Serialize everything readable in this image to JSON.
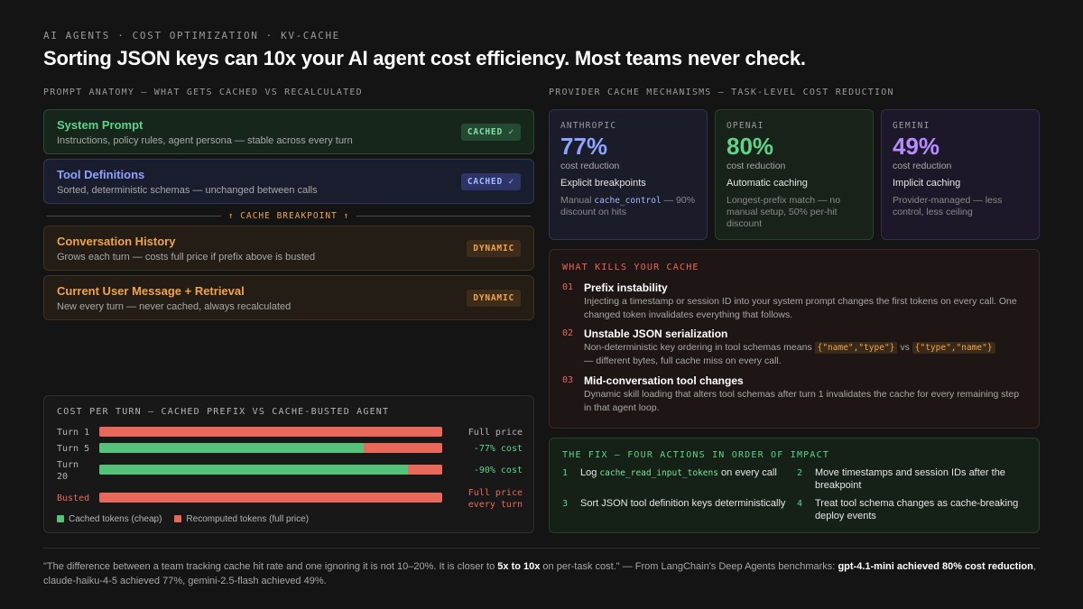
{
  "header": {
    "eyebrow": "AI AGENTS · COST OPTIMIZATION · KV-CACHE",
    "headline": "Sorting JSON keys can 10x your AI agent cost efficiency. Most teams never check."
  },
  "anatomy": {
    "label": "PROMPT ANATOMY — WHAT GETS CACHED VS RECALCULATED",
    "cards": [
      {
        "title": "System Prompt",
        "desc": "Instructions, policy rules, agent persona — stable across every turn",
        "badge": "CACHED ✓"
      },
      {
        "title": "Tool Definitions",
        "desc": "Sorted, deterministic schemas — unchanged between calls",
        "badge": "CACHED ✓"
      },
      {
        "title": "Conversation History",
        "desc": "Grows each turn — costs full price if prefix above is busted",
        "badge": "DYNAMIC"
      },
      {
        "title": "Current User Message + Retrieval",
        "desc": "New every turn — never cached, always recalculated",
        "badge": "DYNAMIC"
      }
    ],
    "breakpoint": "↑ CACHE BREAKPOINT ↑"
  },
  "cost": {
    "title": "COST PER TURN — CACHED PREFIX VS CACHE-BUSTED AGENT",
    "legend": {
      "cached": "Cached tokens (cheap)",
      "recomputed": "Recomputed tokens (full price)"
    },
    "colors": {
      "cached": "#55c27c",
      "recomputed": "#e8685a"
    }
  },
  "chart_data": {
    "type": "bar",
    "title": "COST PER TURN — CACHED PREFIX VS CACHE-BUSTED AGENT",
    "categories": [
      "Turn 1",
      "Turn 5",
      "Turn 20",
      "Busted"
    ],
    "series": [
      {
        "name": "Cached tokens (cheap)",
        "values": [
          0,
          77,
          90,
          0
        ]
      },
      {
        "name": "Recomputed tokens (full price)",
        "values": [
          100,
          23,
          10,
          100
        ]
      }
    ],
    "value_labels": [
      "Full price",
      "-77% cost",
      "-90% cost",
      "Full price every turn"
    ],
    "stacked": true,
    "orientation": "horizontal"
  },
  "providers": {
    "label": "PROVIDER CACHE MECHANISMS — TASK-LEVEL COST REDUCTION",
    "items": [
      {
        "name": "ANTHROPIC",
        "pct": "77%",
        "cr": "cost reduction",
        "mech": "Explicit breakpoints",
        "desc_pre": "Manual ",
        "desc_code": "cache_control",
        "desc_post": " — 90% discount on hits"
      },
      {
        "name": "OPENAI",
        "pct": "80%",
        "cr": "cost reduction",
        "mech": "Automatic caching",
        "desc": "Longest-prefix match — no manual setup, 50% per-hit discount"
      },
      {
        "name": "GEMINI",
        "pct": "49%",
        "cr": "cost reduction",
        "mech": "Implicit caching",
        "desc": "Provider-managed — less control, less ceiling"
      }
    ]
  },
  "kills": {
    "title": "WHAT KILLS YOUR CACHE",
    "items": [
      {
        "num": "01",
        "title": "Prefix instability",
        "desc": "Injecting a timestamp or session ID into your system prompt changes the first tokens on every call. One changed token invalidates everything that follows."
      },
      {
        "num": "02",
        "title": "Unstable JSON serialization",
        "desc_pre": "Non-deterministic key ordering in tool schemas means ",
        "code1": "{\"name\",\"type\"}",
        "vs": " vs ",
        "code2": "{\"type\",\"name\"}",
        "desc_post": " — different bytes, full cache miss on every call."
      },
      {
        "num": "03",
        "title": "Mid-conversation tool changes",
        "desc": "Dynamic skill loading that alters tool schemas after turn 1 invalidates the cache for every remaining step in that agent loop."
      }
    ]
  },
  "fix": {
    "title": "THE FIX — FOUR ACTIONS IN ORDER OF IMPACT",
    "items": [
      {
        "num": "1",
        "pre": "Log ",
        "code": "cache_read_input_tokens",
        "post": " on every call"
      },
      {
        "num": "2",
        "text": "Move timestamps and session IDs after the breakpoint"
      },
      {
        "num": "3",
        "text": "Sort JSON tool definition keys deterministically"
      },
      {
        "num": "4",
        "text": "Treat tool schema changes as cache-breaking deploy events"
      }
    ]
  },
  "footer": {
    "q1": "\"The difference between a team tracking cache hit rate and one ignoring it is not 10–20%. It is closer to ",
    "q1b": "5x to 10x",
    "q2": " on per-task cost.\" — From LangChain's Deep Agents benchmarks: ",
    "q2b": "gpt-4.1-mini achieved 80% cost reduction",
    "q3": ", claude-haiku-4-5 achieved 77%, gemini-2.5-flash achieved 49%."
  }
}
